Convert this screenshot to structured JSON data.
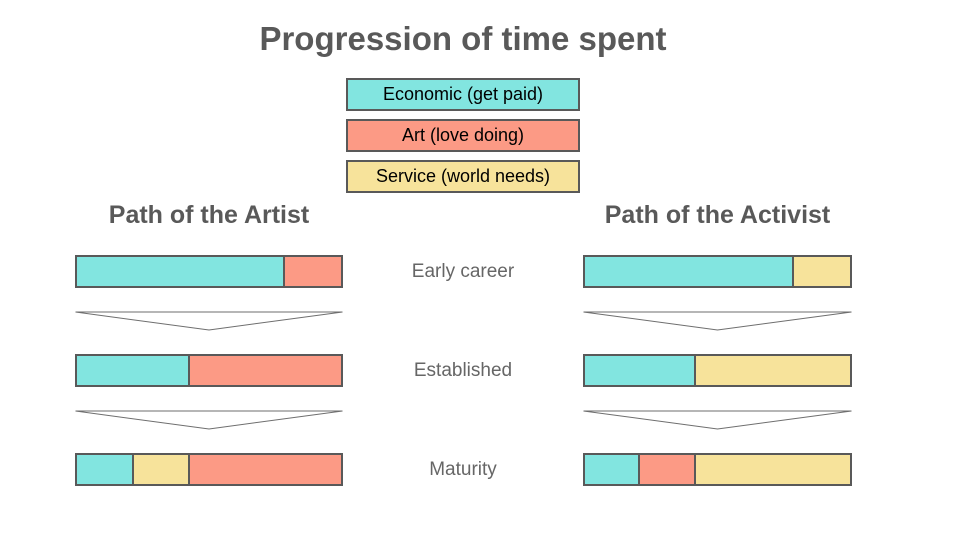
{
  "title": "Progression of time spent",
  "legend": {
    "items": [
      {
        "id": "economic",
        "label": "Economic (get paid)",
        "color": "#82E5E0"
      },
      {
        "id": "art",
        "label": "Art (love doing)",
        "color": "#FC9A85"
      },
      {
        "id": "service",
        "label": "Service (world needs)",
        "color": "#F7E39B"
      }
    ]
  },
  "stages": [
    "Early career",
    "Established",
    "Maturity"
  ],
  "columns": [
    {
      "title": "Path of the Artist",
      "rows": [
        {
          "stage": "Early career",
          "segments": [
            {
              "id": "economic",
              "pct": 78
            },
            {
              "id": "art",
              "pct": 22
            }
          ]
        },
        {
          "stage": "Established",
          "segments": [
            {
              "id": "economic",
              "pct": 42
            },
            {
              "id": "art",
              "pct": 58
            }
          ]
        },
        {
          "stage": "Maturity",
          "segments": [
            {
              "id": "economic",
              "pct": 21
            },
            {
              "id": "service",
              "pct": 21
            },
            {
              "id": "art",
              "pct": 58
            }
          ]
        }
      ]
    },
    {
      "title": "Path of the Activist",
      "rows": [
        {
          "stage": "Early career",
          "segments": [
            {
              "id": "economic",
              "pct": 78
            },
            {
              "id": "service",
              "pct": 22
            }
          ]
        },
        {
          "stage": "Established",
          "segments": [
            {
              "id": "economic",
              "pct": 41
            },
            {
              "id": "service",
              "pct": 59
            }
          ]
        },
        {
          "stage": "Maturity",
          "segments": [
            {
              "id": "economic",
              "pct": 20
            },
            {
              "id": "art",
              "pct": 21
            },
            {
              "id": "service",
              "pct": 59
            }
          ]
        }
      ]
    }
  ],
  "colors": {
    "outline": "#595959",
    "heading_text": "#595959",
    "stage_label_text": "#666666",
    "legend_text": "#000000",
    "arrow_stroke": "#6E6E6E",
    "background": "#FFFFFF"
  }
}
